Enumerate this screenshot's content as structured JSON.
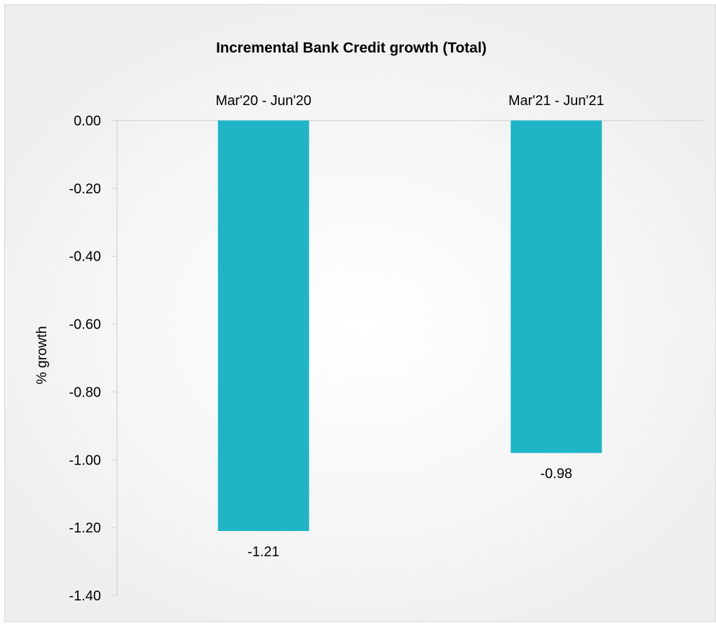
{
  "chart_data": {
    "type": "bar",
    "title": "Incremental Bank Credit growth (Total)",
    "xlabel": "",
    "ylabel": "% growth",
    "categories": [
      "Mar'20 - Jun'20",
      "Mar'21 - Jun'21"
    ],
    "values": [
      -1.21,
      -0.98
    ],
    "data_labels": [
      "-1.21",
      "-0.98"
    ],
    "ylim": [
      -1.4,
      0
    ],
    "yticks": [
      0,
      -0.2,
      -0.4,
      -0.6,
      -0.8,
      -1.0,
      -1.2,
      -1.4
    ],
    "ytick_labels": [
      "0.00",
      "-0.20",
      "-0.40",
      "-0.60",
      "-0.80",
      "-1.00",
      "-1.20",
      "-1.40"
    ],
    "category_axis_position": "top",
    "grid": false,
    "legend": "none",
    "colors": {
      "bar": "#1FB5C7",
      "axis": "#d9d9d9",
      "text": "#000000"
    }
  }
}
